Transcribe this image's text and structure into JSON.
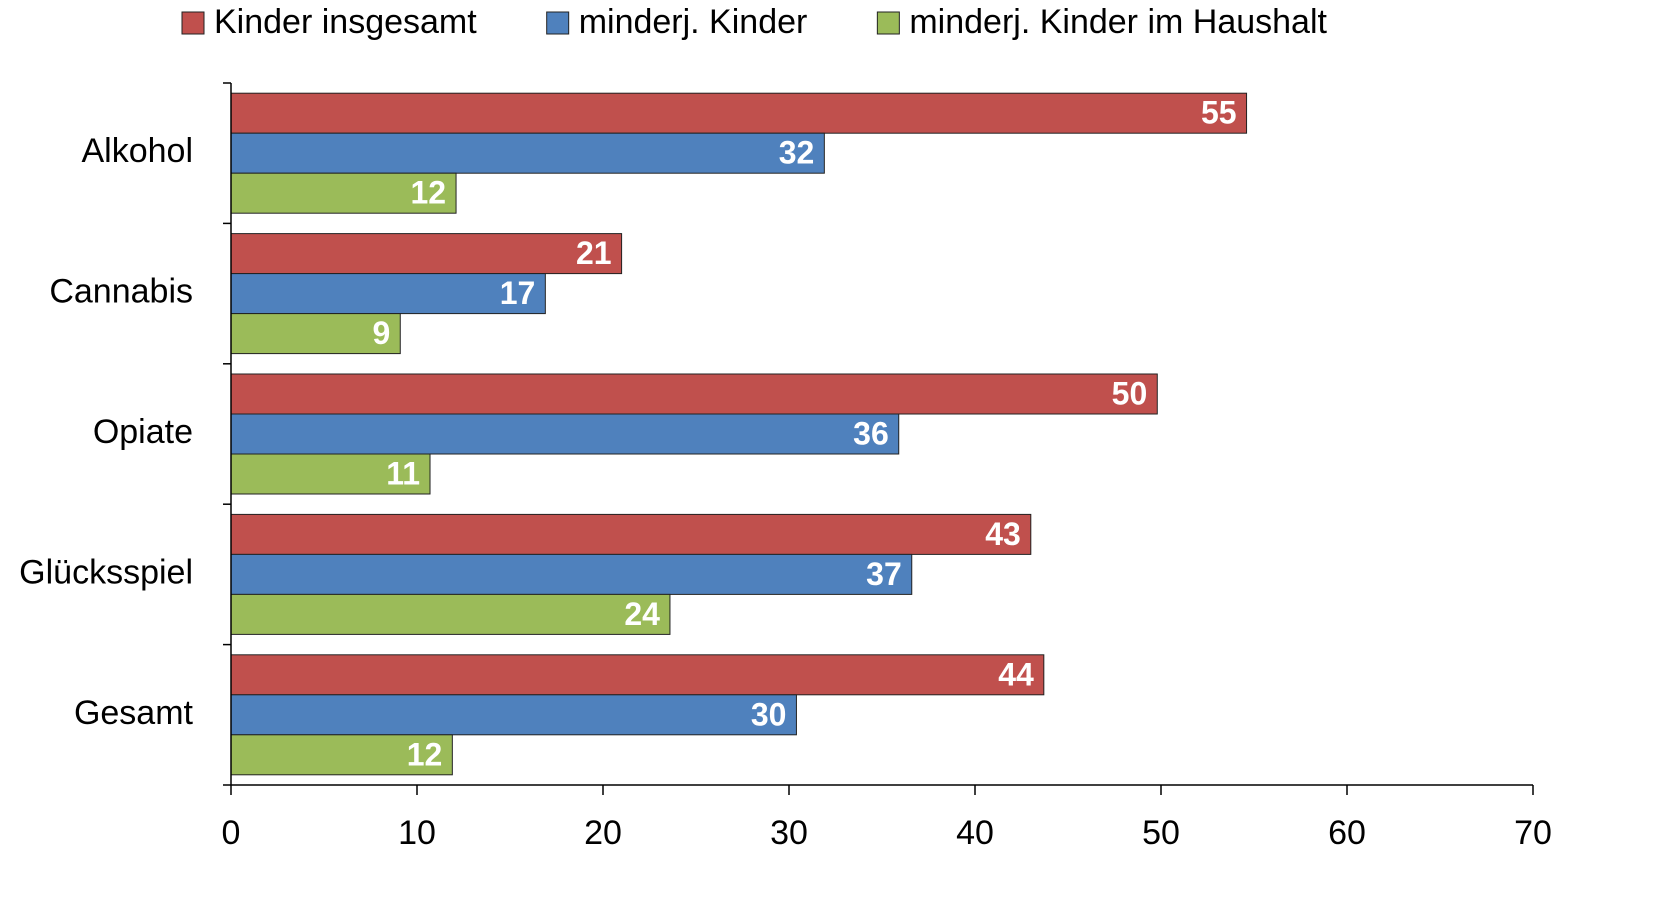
{
  "chart_data": {
    "type": "bar",
    "orientation": "horizontal",
    "categories": [
      "Alkohol",
      "Cannabis",
      "Opiate",
      "Glücksspiel",
      "Gesamt"
    ],
    "series": [
      {
        "name": "Kinder insgesamt",
        "color": "#c0504d",
        "values": [
          54.6,
          21.0,
          49.8,
          43.0,
          43.7
        ],
        "value_labels": [
          "55",
          "21",
          "50",
          "43",
          "44"
        ]
      },
      {
        "name": "minderj. Kinder",
        "color": "#4f81bd",
        "values": [
          31.9,
          16.9,
          35.9,
          36.6,
          30.4
        ],
        "value_labels": [
          "32",
          "17",
          "36",
          "37",
          "30"
        ]
      },
      {
        "name": "minderj. Kinder im Haushalt",
        "color": "#9bbb59",
        "values": [
          12.1,
          9.1,
          10.7,
          23.6,
          11.9
        ],
        "value_labels": [
          "12",
          "9",
          "11",
          "24",
          "12"
        ]
      }
    ],
    "xlim": [
      0,
      70
    ],
    "xticks": [
      0,
      10,
      20,
      30,
      40,
      50,
      60,
      70
    ],
    "grid": false,
    "legend": "top"
  }
}
